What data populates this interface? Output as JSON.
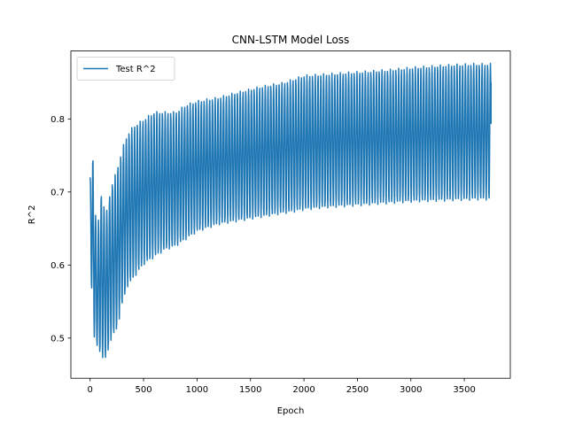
{
  "chart_data": {
    "type": "line",
    "title": "CNN-LSTM Model Loss",
    "xlabel": "Epoch",
    "ylabel": "R^2",
    "xlim": [
      -180,
      3930
    ],
    "ylim": [
      0.445,
      0.893
    ],
    "x_ticks": [
      0,
      500,
      1000,
      1500,
      2000,
      2500,
      3000,
      3500
    ],
    "y_ticks": [
      0.5,
      0.6,
      0.7,
      0.8
    ],
    "x_tick_labels": [
      "0",
      "500",
      "1000",
      "1500",
      "2000",
      "2500",
      "3000",
      "3500"
    ],
    "y_tick_labels": [
      "0.5",
      "0.6",
      "0.7",
      "0.8"
    ],
    "legend_position": "upper-left",
    "grid": false,
    "color": "#1f77b4",
    "series": [
      {
        "name": "Test R^2",
        "x_range": [
          0,
          3750
        ],
        "oscillation_period_epochs": 26,
        "upper_envelope": {
          "x": [
            0,
            20,
            40,
            60,
            100,
            150,
            200,
            250,
            300,
            350,
            400,
            500,
            600,
            700,
            800,
            900,
            1000,
            1200,
            1400,
            1600,
            1800,
            1900,
            2000,
            2200,
            2400,
            2600,
            2800,
            3000,
            3200,
            3400,
            3600,
            3750
          ],
          "y": [
            0.72,
            0.76,
            0.72,
            0.63,
            0.7,
            0.67,
            0.71,
            0.73,
            0.76,
            0.78,
            0.79,
            0.8,
            0.81,
            0.81,
            0.81,
            0.82,
            0.825,
            0.83,
            0.838,
            0.845,
            0.85,
            0.855,
            0.86,
            0.862,
            0.864,
            0.866,
            0.868,
            0.871,
            0.873,
            0.875,
            0.876,
            0.876
          ]
        },
        "lower_envelope": {
          "x": [
            0,
            20,
            40,
            60,
            100,
            150,
            200,
            250,
            300,
            350,
            400,
            500,
            600,
            700,
            800,
            900,
            1000,
            1200,
            1400,
            1600,
            1800,
            1900,
            2000,
            2200,
            2400,
            2600,
            2800,
            3000,
            3200,
            3400,
            3600,
            3750
          ],
          "y": [
            0.64,
            0.53,
            0.5,
            0.49,
            0.475,
            0.47,
            0.5,
            0.51,
            0.545,
            0.57,
            0.58,
            0.6,
            0.61,
            0.62,
            0.625,
            0.635,
            0.645,
            0.655,
            0.66,
            0.665,
            0.67,
            0.672,
            0.675,
            0.678,
            0.68,
            0.682,
            0.684,
            0.686,
            0.687,
            0.688,
            0.689,
            0.689
          ]
        },
        "final_value": 0.85
      }
    ]
  }
}
